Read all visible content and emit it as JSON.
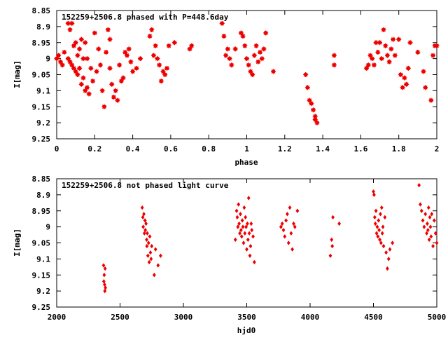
{
  "colors": {
    "points": "#ee0000",
    "axes": "#000000",
    "background": "#ffffff"
  },
  "chart_data": [
    {
      "type": "scatter",
      "title": "152259+2506.8 phased with P=448.6day",
      "xlabel": "phase",
      "ylabel": "I[mag]",
      "xlim": [
        0,
        2
      ],
      "ylim": [
        9.25,
        8.85
      ],
      "y_inverted": true,
      "marker": "filled-circle-star",
      "grid": false,
      "xticks": [
        0,
        0.2,
        0.4,
        0.6,
        0.8,
        1,
        1.2,
        1.4,
        1.6,
        1.8,
        2
      ],
      "xtick_labels": [
        "0",
        "0.2",
        "0.4",
        "0.6",
        "0.8",
        "1",
        "1.2",
        "1.4",
        "1.6",
        "1.8",
        "2"
      ],
      "yticks": [
        8.85,
        8.9,
        8.95,
        9,
        9.05,
        9.1,
        9.15,
        9.2,
        9.25
      ],
      "ytick_labels": [
        "8.85",
        "8.9",
        "8.95",
        "9",
        "9.05",
        "9.1",
        "9.15",
        "9.2",
        "9.25"
      ],
      "series": [
        {
          "x": [
            0.0,
            0.01,
            0.02,
            0.03,
            0.04,
            0.06,
            0.06,
            0.07,
            0.07,
            0.08,
            0.08,
            0.09,
            0.09,
            0.1,
            0.1,
            0.11,
            0.11,
            0.12,
            0.12,
            0.13,
            0.13,
            0.14,
            0.14,
            0.15,
            0.15,
            0.16,
            0.16,
            0.17,
            0.18,
            0.19,
            0.2,
            0.21,
            0.22,
            0.23,
            0.24,
            0.25,
            0.26,
            0.27,
            0.28,
            0.28,
            0.29,
            0.3,
            0.31,
            0.32,
            0.33,
            0.34,
            0.35,
            0.36,
            0.37,
            0.38,
            0.39,
            0.4,
            0.42,
            0.44,
            0.49,
            0.5,
            0.51,
            0.52,
            0.53,
            0.54,
            0.55,
            0.56,
            0.57,
            0.58,
            0.59,
            0.62,
            0.7,
            0.71,
            0.87,
            0.88,
            0.89,
            0.9,
            0.91,
            0.92,
            0.94,
            0.97,
            0.98,
            0.99,
            1.0,
            1.01,
            1.02,
            1.03,
            1.04,
            1.05,
            1.06,
            1.07,
            1.08,
            1.09,
            1.1,
            1.14,
            1.31,
            1.32,
            1.33,
            1.34,
            1.35,
            1.36,
            1.36,
            1.37,
            1.46,
            1.46,
            1.63,
            1.64,
            1.65,
            1.66,
            1.67,
            1.68,
            1.69,
            1.7,
            1.71,
            1.72,
            1.73,
            1.74,
            1.75,
            1.76,
            1.77,
            1.78,
            1.8,
            1.81,
            1.82,
            1.83,
            1.84,
            1.85,
            1.86,
            1.9,
            1.93,
            1.94,
            1.97,
            1.98,
            1.99,
            2.0
          ],
          "y": [
            9.0,
            8.99,
            9.01,
            9.02,
            8.98,
            9.0,
            8.89,
            8.91,
            9.01,
            9.02,
            8.89,
            8.96,
            9.03,
            8.95,
            9.04,
            8.99,
            9.05,
            8.97,
            9.03,
            8.94,
            9.08,
            9.0,
            9.06,
            8.95,
            9.1,
            9.0,
            9.09,
            9.11,
            9.03,
            9.07,
            8.92,
            9.04,
            8.97,
            9.02,
            9.1,
            9.15,
            8.98,
            8.91,
            8.94,
            9.03,
            9.08,
            9.12,
            9.1,
            9.13,
            9.02,
            9.07,
            9.06,
            8.98,
            8.99,
            8.97,
            9.01,
            9.04,
            9.03,
            9.0,
            8.93,
            8.91,
            8.99,
            8.96,
            9.0,
            9.02,
            9.07,
            9.04,
            9.05,
            9.03,
            8.96,
            8.95,
            8.97,
            8.96,
            8.89,
            8.93,
            8.99,
            8.97,
            9.0,
            9.02,
            8.97,
            8.92,
            8.93,
            8.96,
            9.0,
            9.02,
            9.04,
            9.05,
            8.99,
            8.96,
            9.01,
            8.98,
            9.0,
            8.97,
            8.92,
            9.04,
            9.05,
            9.09,
            9.13,
            9.14,
            9.16,
            9.18,
            9.19,
            9.2,
            8.99,
            9.02,
            9.03,
            9.02,
            8.99,
            9.0,
            9.02,
            8.95,
            8.98,
            8.95,
            9.0,
            8.91,
            8.96,
            8.99,
            9.01,
            8.97,
            8.94,
            8.99,
            8.94,
            9.05,
            9.09,
            9.06,
            9.08,
            9.03,
            8.95,
            8.98,
            9.04,
            9.09,
            9.13,
            8.99,
            8.96,
            8.96
          ],
          "y_note_hidden": ""
        }
      ]
    },
    {
      "type": "scatter",
      "title": "152259+2506.8 not phased light curve",
      "xlabel": "hjd0",
      "ylabel": "I[mag]",
      "xlim": [
        2000,
        5000
      ],
      "ylim": [
        9.25,
        8.85
      ],
      "y_inverted": true,
      "marker": "filled-diamond",
      "grid": false,
      "xticks": [
        2000,
        2500,
        3000,
        3500,
        4000,
        4500,
        5000
      ],
      "xtick_labels": [
        "2000",
        "2500",
        "3000",
        "3500",
        "4000",
        "4500",
        "5000"
      ],
      "yticks": [
        8.85,
        8.9,
        8.95,
        9,
        9.05,
        9.1,
        9.15,
        9.2,
        9.25
      ],
      "ytick_labels": [
        "8.85",
        "8.9",
        "8.95",
        "9",
        "9.05",
        "9.1",
        "9.15",
        "9.2",
        "9.25"
      ],
      "series": [
        {
          "x": [
            2370,
            2372,
            2375,
            2378,
            2380,
            2382,
            2385,
            2675,
            2680,
            2683,
            2688,
            2692,
            2697,
            2700,
            2705,
            2710,
            2712,
            2715,
            2720,
            2725,
            2730,
            2735,
            2740,
            2745,
            2750,
            2770,
            2780,
            2800,
            2820,
            3410,
            3420,
            3425,
            3430,
            3435,
            3440,
            3445,
            3450,
            3455,
            3460,
            3465,
            3470,
            3475,
            3480,
            3485,
            3490,
            3495,
            3500,
            3505,
            3510,
            3515,
            3520,
            3525,
            3530,
            3535,
            3540,
            3550,
            3560,
            3770,
            3780,
            3790,
            3800,
            3810,
            3820,
            3830,
            3840,
            3850,
            3860,
            3870,
            3880,
            3900,
            4160,
            4170,
            4175,
            4180,
            4230,
            4500,
            4505,
            4510,
            4515,
            4520,
            4525,
            4530,
            4535,
            4540,
            4545,
            4550,
            4555,
            4560,
            4565,
            4570,
            4575,
            4580,
            4590,
            4600,
            4610,
            4620,
            4630,
            4650,
            4860,
            4870,
            4880,
            4890,
            4900,
            4910,
            4920,
            4925,
            4930,
            4935,
            4940,
            4945,
            4950,
            4955,
            4960,
            4970,
            4980,
            4990,
            5000
          ],
          "y": [
            9.12,
            9.17,
            9.15,
            9.18,
            9.2,
            9.13,
            9.19,
            8.94,
            8.97,
            9.0,
            8.96,
            9.02,
            8.98,
            9.01,
            8.99,
            9.04,
            9.06,
            9.02,
            9.09,
            9.05,
            9.11,
            9.03,
            9.08,
            9.1,
            9.06,
            9.15,
            9.07,
            9.12,
            9.09,
            9.04,
            8.95,
            8.97,
            9.0,
            8.93,
            8.99,
            9.02,
            8.96,
            9.01,
            9.03,
            8.98,
            9.0,
            9.05,
            8.94,
            9.02,
            8.97,
            9.0,
            9.07,
            8.99,
            9.04,
            8.91,
            9.02,
            9.09,
            9.06,
            8.99,
            9.01,
            9.03,
            9.11,
            9.0,
            8.99,
            9.01,
            9.03,
            8.98,
            8.96,
            9.05,
            8.94,
            9.02,
            9.07,
            8.99,
            9.0,
            8.95,
            9.09,
            9.04,
            9.06,
            8.97,
            8.99,
            8.89,
            8.9,
            8.97,
            8.99,
            8.95,
            9.02,
            9.0,
            9.03,
            8.98,
            9.01,
            9.04,
            8.96,
            9.05,
            8.94,
            9.02,
            9.0,
            9.06,
            8.97,
            9.08,
            9.13,
            9.1,
            9.07,
            9.05,
            8.87,
            8.93,
            8.95,
            8.98,
            9.0,
            8.96,
            9.02,
            8.99,
            9.01,
            8.94,
            9.04,
            8.97,
            9.0,
            9.03,
            8.96,
            9.06,
            8.98,
            9.02,
            9.05
          ]
        }
      ]
    }
  ]
}
